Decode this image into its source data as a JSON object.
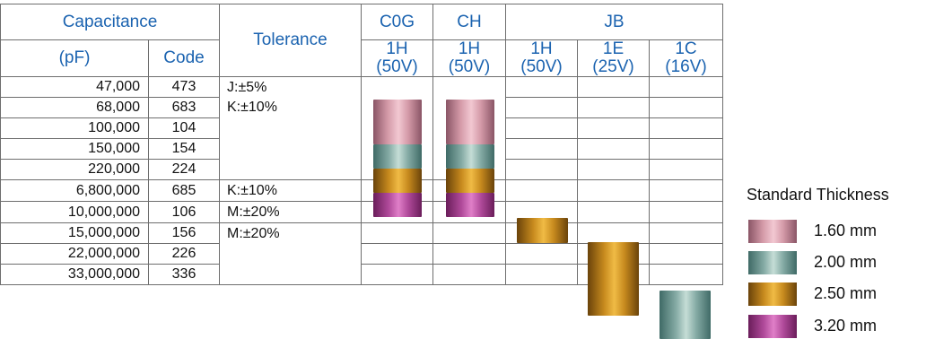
{
  "header": {
    "capacitance": "Capacitance",
    "tolerance": "Tolerance",
    "pf": "(pF)",
    "code": "Code",
    "groups": {
      "c0g": "C0G",
      "ch": "CH",
      "jb": "JB"
    },
    "voltages": [
      {
        "code": "1H",
        "volt": "(50V)"
      },
      {
        "code": "1H",
        "volt": "(50V)"
      },
      {
        "code": "1H",
        "volt": "(50V)"
      },
      {
        "code": "1E",
        "volt": "(25V)"
      },
      {
        "code": "1C",
        "volt": "(16V)"
      }
    ]
  },
  "rows": [
    {
      "cap": "47,000",
      "code": "473"
    },
    {
      "cap": "68,000",
      "code": "683"
    },
    {
      "cap": "100,000",
      "code": "104"
    },
    {
      "cap": "150,000",
      "code": "154"
    },
    {
      "cap": "220,000",
      "code": "224"
    },
    {
      "cap": "6,800,000",
      "code": "685"
    },
    {
      "cap": "10,000,000",
      "code": "106"
    },
    {
      "cap": "15,000,000",
      "code": "156"
    },
    {
      "cap": "22,000,000",
      "code": "226"
    },
    {
      "cap": "33,000,000",
      "code": "336"
    }
  ],
  "tolerances": {
    "t1": [
      "J:±5%",
      "K:±10%"
    ],
    "t2": [
      "K:±10%"
    ],
    "t3": [
      "M:±20%"
    ],
    "t4": [
      "M:±20%"
    ]
  },
  "legend": {
    "title": "Standard Thickness",
    "items": [
      {
        "label": "1.60 mm",
        "color": "#d49aa8"
      },
      {
        "label": "2.00 mm",
        "color": "#84aaa4"
      },
      {
        "label": "2.50 mm",
        "color": "#c78a1e"
      },
      {
        "label": "3.20 mm",
        "color": "#b04a9a"
      }
    ]
  }
}
